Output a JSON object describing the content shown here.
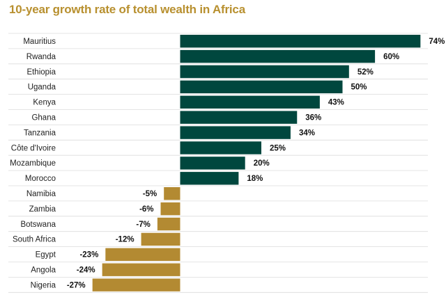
{
  "chart_data": {
    "type": "bar",
    "orientation": "horizontal",
    "title": "10-year growth rate of total wealth in Africa",
    "xlabel": "",
    "ylabel": "",
    "value_suffix": "%",
    "xlim": [
      -27,
      74
    ],
    "grid": false,
    "legend": "none",
    "categories": [
      "Mauritius",
      "Rwanda",
      "Ethiopia",
      "Uganda",
      "Kenya",
      "Ghana",
      "Tanzania",
      "Côte d'Ivoire",
      "Mozambique",
      "Morocco",
      "Namibia",
      "Zambia",
      "Botswana",
      "South Africa",
      "Egypt",
      "Angola",
      "Nigeria"
    ],
    "values": [
      74,
      60,
      52,
      50,
      43,
      36,
      34,
      25,
      20,
      18,
      -5,
      -6,
      -7,
      -12,
      -23,
      -24,
      -27
    ],
    "value_labels": [
      "74%",
      "60%",
      "52%",
      "50%",
      "43%",
      "36%",
      "34%",
      "25%",
      "20%",
      "18%",
      "-5%",
      "-6%",
      "-7%",
      "-12%",
      "-23%",
      "-24%",
      "-27%"
    ],
    "colors": {
      "positive": "#00473e",
      "negative": "#b38a32",
      "title": "#b8902f",
      "row_separator": "#dcdcdc"
    }
  }
}
